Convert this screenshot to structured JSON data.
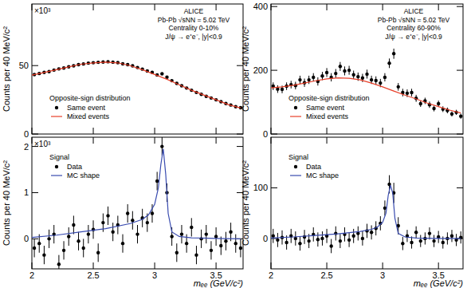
{
  "chart_data": [
    {
      "type": "scatter",
      "ylabel": "Counts per 40 MeV/c²",
      "yscale_label": "×10³",
      "annotations": [
        "ALICE",
        "Pb-Pb √sNN = 5.02 TeV",
        "Centrality 0-10%",
        "J/ψ → e⁺e⁻, |y|<0.9"
      ],
      "legend_title": "Opposite-sign distribution",
      "legend": "lower left",
      "tick_labels": "y",
      "xlim": [
        2,
        3.72
      ],
      "xticks": [
        2,
        2.5,
        3,
        3.5
      ],
      "ylim": [
        0,
        95
      ],
      "yticks": [
        0,
        50
      ],
      "series": [
        {
          "name": "Same event",
          "type": "scatter",
          "marker": "circle",
          "color": "#000000",
          "x": [
            2.02,
            2.06,
            2.1,
            2.14,
            2.18,
            2.22,
            2.26,
            2.3,
            2.34,
            2.38,
            2.42,
            2.46,
            2.5,
            2.54,
            2.58,
            2.62,
            2.66,
            2.7,
            2.74,
            2.78,
            2.82,
            2.86,
            2.9,
            2.94,
            2.98,
            3.02,
            3.06,
            3.1,
            3.14,
            3.18,
            3.22,
            3.26,
            3.3,
            3.34,
            3.38,
            3.42,
            3.46,
            3.5,
            3.54,
            3.58,
            3.62,
            3.66,
            3.7
          ],
          "values": [
            43.4,
            44.2,
            45.0,
            45.6,
            46.7,
            47.6,
            48.2,
            49.1,
            49.8,
            50.7,
            51.2,
            51.8,
            52.1,
            52.4,
            52.6,
            52.8,
            52.5,
            52.2,
            51.3,
            50.7,
            49.8,
            48.6,
            47.4,
            46.0,
            45.0,
            43.2,
            44.0,
            41.5,
            39.0,
            37.0,
            35.3,
            33.6,
            32.0,
            30.4,
            29.0,
            27.5,
            26.3,
            25.0,
            23.6,
            22.3,
            21.2,
            20.0,
            19.2
          ],
          "errors": [
            0.23,
            0.23,
            0.23,
            0.23,
            0.23,
            0.23,
            0.23,
            0.23,
            0.23,
            0.23,
            0.23,
            0.23,
            0.23,
            0.23,
            0.23,
            0.23,
            0.23,
            0.23,
            0.23,
            0.23,
            0.23,
            0.23,
            0.23,
            0.23,
            0.23,
            0.23,
            0.23,
            0.23,
            0.23,
            0.23,
            0.23,
            0.23,
            0.23,
            0.23,
            0.23,
            0.23,
            0.23,
            0.23,
            0.23,
            0.23,
            0.23,
            0.23,
            0.23
          ]
        },
        {
          "name": "Mixed events",
          "type": "line",
          "line_style": "solid",
          "color": "#e8402a",
          "x": [
            2.0,
            2.1,
            2.2,
            2.3,
            2.4,
            2.5,
            2.6,
            2.7,
            2.8,
            2.9,
            3.0,
            3.1,
            3.2,
            3.3,
            3.4,
            3.5,
            3.6,
            3.7
          ],
          "values": [
            43,
            45,
            47,
            49,
            51,
            52,
            52.5,
            52,
            50,
            47,
            43.5,
            40,
            36,
            32,
            28.5,
            25,
            21.5,
            19
          ]
        }
      ]
    },
    {
      "type": "scatter",
      "ylabel": "Counts per 40 MeV/c²",
      "annotations": [
        "ALICE",
        "Pb-Pb √sNN = 5.02 TeV",
        "Centrality 60-90%",
        "J/ψ → e⁺e⁻, |y|<0.9"
      ],
      "legend_title": "Opposite-sign distribution",
      "legend": "lower left",
      "tick_labels": "y",
      "xlim": [
        2,
        3.72
      ],
      "xticks": [
        2,
        2.5,
        3,
        3.5
      ],
      "ylim": [
        0,
        408
      ],
      "yticks": [
        0,
        200,
        400
      ],
      "series": [
        {
          "name": "Same event",
          "type": "scatter",
          "marker": "circle",
          "color": "#000000",
          "x": [
            2.02,
            2.06,
            2.1,
            2.14,
            2.18,
            2.22,
            2.26,
            2.3,
            2.34,
            2.38,
            2.42,
            2.46,
            2.5,
            2.54,
            2.58,
            2.62,
            2.66,
            2.7,
            2.74,
            2.78,
            2.82,
            2.86,
            2.9,
            2.94,
            2.98,
            3.02,
            3.06,
            3.1,
            3.14,
            3.18,
            3.22,
            3.26,
            3.3,
            3.34,
            3.38,
            3.42,
            3.46,
            3.5,
            3.54,
            3.58,
            3.62,
            3.66,
            3.7
          ],
          "values": [
            150,
            141,
            140,
            150,
            155,
            152,
            170,
            161,
            170,
            178,
            165,
            182,
            193,
            178,
            190,
            212,
            198,
            200,
            186,
            180,
            176,
            188,
            170,
            168,
            160,
            178,
            222,
            252,
            148,
            130,
            128,
            130,
            112,
            95,
            104,
            92,
            80,
            95,
            78,
            74,
            63,
            68,
            56
          ],
          "errors": [
            12,
            12,
            12,
            12,
            12,
            12,
            13,
            13,
            13,
            13,
            13,
            13,
            14,
            13,
            14,
            14,
            14,
            14,
            13,
            13,
            13,
            14,
            13,
            13,
            13,
            13,
            15,
            16,
            12,
            12,
            12,
            12,
            11,
            10,
            10,
            10,
            9,
            10,
            9,
            9,
            8,
            8,
            8
          ]
        },
        {
          "name": "Mixed events",
          "type": "line",
          "line_style": "solid",
          "color": "#e8402a",
          "x": [
            2.0,
            2.1,
            2.2,
            2.3,
            2.4,
            2.5,
            2.6,
            2.7,
            2.8,
            2.9,
            3.0,
            3.1,
            3.2,
            3.3,
            3.4,
            3.5,
            3.6,
            3.7
          ],
          "values": [
            145,
            148,
            153,
            160,
            167,
            173,
            176,
            175,
            170,
            160,
            148,
            135,
            122,
            110,
            97,
            86,
            75,
            66
          ]
        }
      ]
    },
    {
      "type": "scatter",
      "ylabel": "Counts per 40 MeV/c²",
      "xlabel": "mₑₑ (GeV/c²)",
      "yscale_label": "×10³",
      "legend_title": "Signal",
      "legend": "upper left",
      "tick_labels": true,
      "xlim": [
        2,
        3.72
      ],
      "xticks": [
        2,
        2.5,
        3,
        3.5
      ],
      "ylim": [
        -0.65,
        2.2
      ],
      "yticks": [
        0,
        1,
        2
      ],
      "series": [
        {
          "name": "Data",
          "type": "scatter",
          "marker": "circle",
          "color": "#000000",
          "x": [
            2.02,
            2.06,
            2.1,
            2.14,
            2.18,
            2.22,
            2.26,
            2.3,
            2.34,
            2.38,
            2.42,
            2.46,
            2.5,
            2.54,
            2.58,
            2.62,
            2.66,
            2.7,
            2.74,
            2.78,
            2.82,
            2.86,
            2.9,
            2.94,
            2.98,
            3.02,
            3.06,
            3.1,
            3.14,
            3.18,
            3.22,
            3.26,
            3.3,
            3.34,
            3.38,
            3.42,
            3.46,
            3.5,
            3.54,
            3.58,
            3.62,
            3.66,
            3.7
          ],
          "values": [
            -0.2,
            -0.1,
            -0.35,
            0.0,
            0.1,
            -0.55,
            -0.25,
            0.05,
            0.3,
            -0.05,
            -0.2,
            0.1,
            0.2,
            -0.3,
            0.35,
            0.5,
            0.15,
            0.3,
            -0.1,
            0.55,
            0.4,
            0.1,
            0.45,
            0.35,
            0.55,
            1.25,
            2.0,
            1.0,
            0.05,
            -0.3,
            0.1,
            -0.1,
            0.25,
            -0.35,
            0.0,
            0.1,
            -0.25,
            0.05,
            -0.15,
            -0.05,
            0.15,
            -0.1,
            -0.2
          ],
          "errors": [
            0.2,
            0.2,
            0.2,
            0.2,
            0.2,
            0.2,
            0.2,
            0.2,
            0.2,
            0.2,
            0.2,
            0.2,
            0.2,
            0.2,
            0.2,
            0.2,
            0.2,
            0.2,
            0.2,
            0.2,
            0.2,
            0.2,
            0.2,
            0.2,
            0.2,
            0.2,
            0.2,
            0.2,
            0.2,
            0.2,
            0.2,
            0.2,
            0.2,
            0.2,
            0.2,
            0.2,
            0.2,
            0.2,
            0.2,
            0.2,
            0.2,
            0.2,
            0.2
          ]
        },
        {
          "name": "MC shape",
          "type": "line",
          "line_style": "solid",
          "color": "#3a4cb0",
          "x": [
            2.0,
            2.2,
            2.4,
            2.6,
            2.8,
            2.9,
            2.95,
            3.0,
            3.03,
            3.05,
            3.07,
            3.09,
            3.11,
            3.14,
            3.2,
            3.3,
            3.5,
            3.7
          ],
          "values": [
            0.03,
            0.08,
            0.15,
            0.22,
            0.33,
            0.42,
            0.52,
            0.75,
            1.1,
            1.6,
            1.95,
            1.4,
            0.55,
            0.15,
            0.05,
            0.02,
            0.01,
            0.0
          ]
        }
      ]
    },
    {
      "type": "scatter",
      "ylabel": "Counts per 40 MeV/c²",
      "xlabel": "mₑₑ (GeV/c²)",
      "legend_title": "Signal",
      "legend": "upper left",
      "tick_labels": true,
      "xlim": [
        2,
        3.72
      ],
      "xticks": [
        2,
        2.5,
        3,
        3.5
      ],
      "ylim": [
        -60,
        200
      ],
      "yticks": [
        0,
        100
      ],
      "series": [
        {
          "name": "Data",
          "type": "scatter",
          "marker": "circle",
          "color": "#000000",
          "x": [
            2.02,
            2.06,
            2.1,
            2.14,
            2.18,
            2.22,
            2.26,
            2.3,
            2.34,
            2.38,
            2.42,
            2.46,
            2.5,
            2.54,
            2.58,
            2.62,
            2.66,
            2.7,
            2.74,
            2.78,
            2.82,
            2.86,
            2.9,
            2.94,
            2.98,
            3.02,
            3.06,
            3.1,
            3.14,
            3.18,
            3.22,
            3.26,
            3.3,
            3.34,
            3.38,
            3.42,
            3.46,
            3.5,
            3.54,
            3.58,
            3.62,
            3.66,
            3.7
          ],
          "values": [
            5,
            -3,
            2,
            -8,
            5,
            0,
            -10,
            3,
            -5,
            8,
            -2,
            0,
            5,
            -15,
            10,
            -5,
            8,
            -3,
            5,
            10,
            0,
            15,
            12,
            20,
            30,
            60,
            107,
            90,
            25,
            -10,
            5,
            -8,
            12,
            -5,
            0,
            10,
            -5,
            3,
            -8,
            0,
            5,
            -3,
            2
          ],
          "errors": [
            14,
            14,
            14,
            14,
            14,
            14,
            14,
            14,
            14,
            14,
            14,
            14,
            14,
            14,
            14,
            14,
            14,
            14,
            14,
            14,
            14,
            14,
            14,
            14,
            14,
            15,
            18,
            20,
            17,
            13,
            12,
            12,
            12,
            12,
            12,
            12,
            12,
            12,
            12,
            12,
            12,
            12,
            12
          ]
        },
        {
          "name": "MC shape",
          "type": "line",
          "line_style": "solid",
          "color": "#3a4cb0",
          "x": [
            2.0,
            2.2,
            2.4,
            2.6,
            2.8,
            2.9,
            2.95,
            3.0,
            3.03,
            3.05,
            3.07,
            3.09,
            3.11,
            3.14,
            3.2,
            3.3,
            3.5,
            3.7
          ],
          "values": [
            1,
            3,
            6,
            9,
            14,
            18,
            22,
            32,
            50,
            85,
            105,
            90,
            40,
            10,
            3,
            1,
            0,
            0
          ]
        }
      ]
    }
  ]
}
